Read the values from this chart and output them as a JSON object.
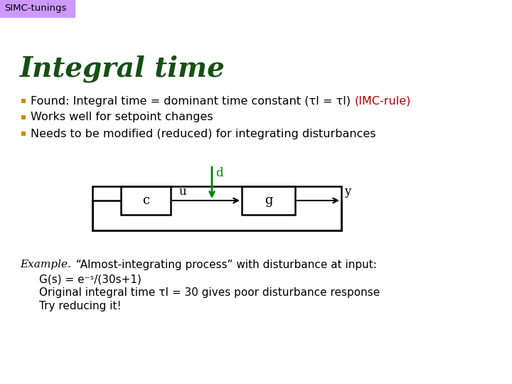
{
  "title": "Integral time",
  "header_label": "SIMC-tunings",
  "header_bg": "#cc99ff",
  "title_color": "#165016",
  "title_fontsize": 28,
  "bullet_color": "#cc8800",
  "bullet1_black": "Found: Integral time = dominant time constant (τI = τl) ",
  "bullet1_red": "(IMC-rule)",
  "bullet2": "Works well for setpoint changes",
  "bullet3": "Needs to be modified (reduced) for integrating disturbances",
  "block_c_label": "c",
  "block_g_label": "g",
  "signal_u": "u",
  "signal_d": "d",
  "signal_y": "y",
  "disturbance_color": "#008000",
  "example_italic": "Example.",
  "example_rest": "“Almost-integrating process” with disturbance at input:",
  "example_line2": "G(s) = e⁻ˢ/(30s+1)",
  "example_line3": "Original integral time τI = 30 gives poor disturbance response",
  "example_line4": "Try reducing it!",
  "bg_color": "#ffffff",
  "text_fontsize": 11.5,
  "example_fontsize": 11
}
